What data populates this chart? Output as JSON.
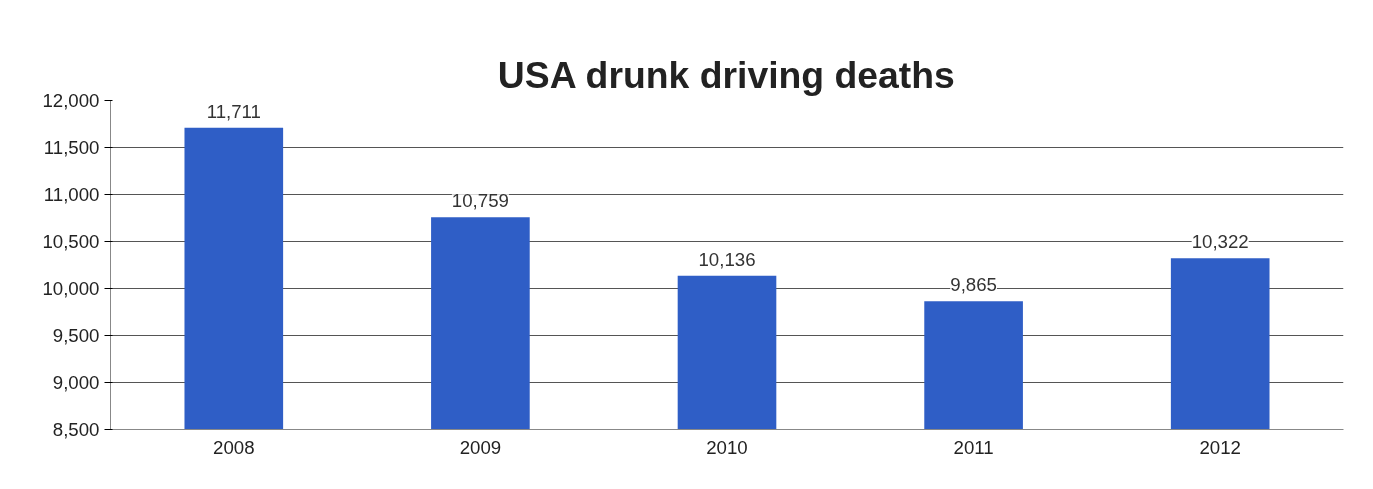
{
  "chart_data": {
    "type": "bar",
    "title": "USA drunk driving deaths",
    "categories": [
      "2008",
      "2009",
      "2010",
      "2011",
      "2012"
    ],
    "values": [
      11711,
      10759,
      10136,
      9865,
      10322
    ],
    "color": "#2f5ec6",
    "ylim": [
      8500,
      12000
    ],
    "yticks": [
      {
        "value": 8500,
        "label": "8,500"
      },
      {
        "value": 9000,
        "label": "9,000"
      },
      {
        "value": 9500,
        "label": "9,500"
      },
      {
        "value": 10000,
        "label": "10,000"
      },
      {
        "value": 10500,
        "label": "10,500"
      },
      {
        "value": 11000,
        "label": "11,000"
      },
      {
        "value": 11500,
        "label": "11,500"
      },
      {
        "value": 12000,
        "label": "12,000"
      }
    ],
    "value_labels": [
      "11,711",
      "10,759",
      "10,136",
      "9,865",
      "10,322"
    ],
    "grid": "y"
  }
}
